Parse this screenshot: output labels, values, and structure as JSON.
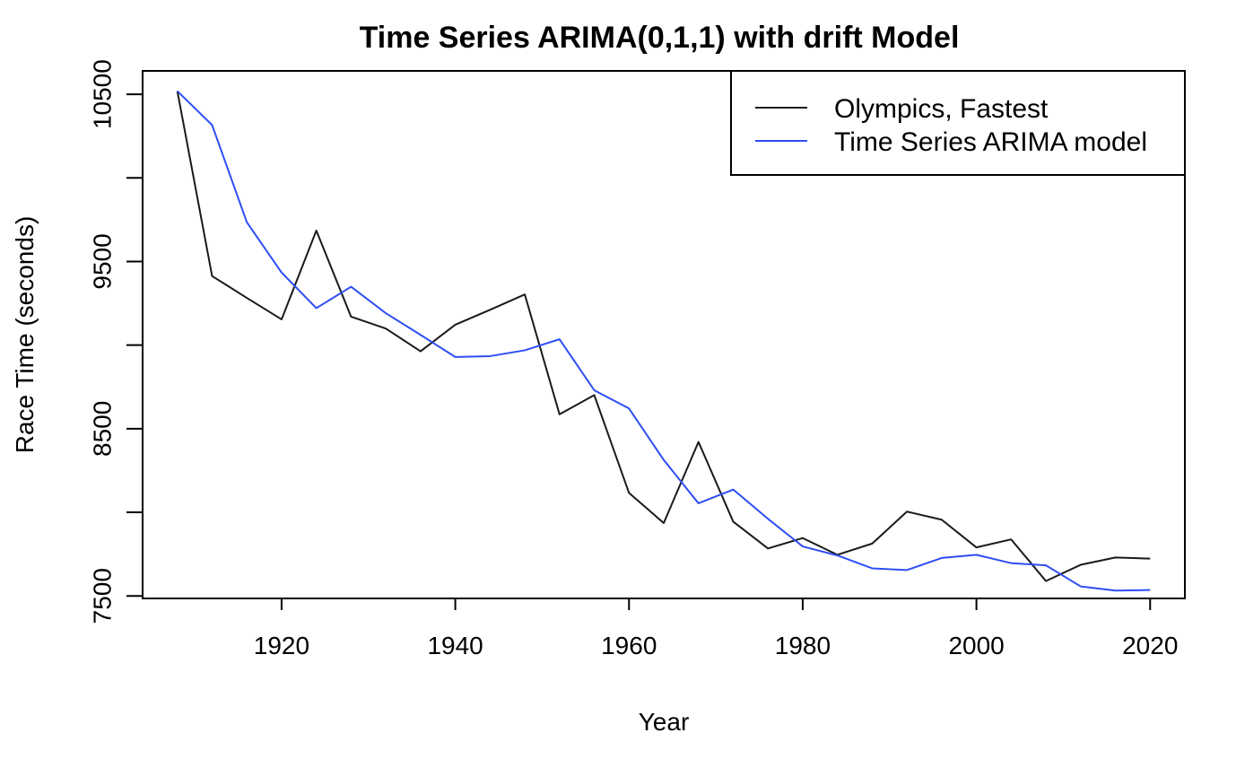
{
  "chart_data": {
    "type": "line",
    "title": "Time Series ARIMA(0,1,1) with drift Model",
    "xlabel": "Year",
    "ylabel": "Race Time (seconds)",
    "xlim": [
      1904,
      2024
    ],
    "ylim": [
      7485,
      10640
    ],
    "x_ticks": [
      1920,
      1940,
      1960,
      1980,
      2000,
      2020
    ],
    "y_ticks": [
      7500,
      8000,
      8500,
      9000,
      9500,
      10000,
      10500
    ],
    "y_tick_labels": [
      "7500",
      "",
      "8500",
      "",
      "9500",
      "",
      "10500"
    ],
    "legend_position": "top-right",
    "grid": false,
    "x": [
      1908,
      1912,
      1916,
      1920,
      1924,
      1928,
      1932,
      1936,
      1940,
      1944,
      1948,
      1952,
      1956,
      1960,
      1964,
      1968,
      1972,
      1976,
      1980,
      1984,
      1988,
      1992,
      1996,
      2000,
      2004,
      2008,
      2012,
      2016,
      2020
    ],
    "series": [
      {
        "name": "Olympics, Fastest",
        "color": "#1a1a1a",
        "values": [
          10519,
          9413,
          9282,
          9154,
          9685,
          9170,
          9099,
          8963,
          9122,
          9211,
          9303,
          8586,
          8701,
          8116,
          7936,
          8421,
          7944,
          7784,
          7846,
          7746,
          7813,
          8004,
          7956,
          7790,
          7838,
          7589,
          7686,
          7730,
          7723
        ]
      },
      {
        "name": "Time Series ARIMA model",
        "color": "#2d4ef5",
        "values": [
          10519,
          10316,
          9735,
          9434,
          9221,
          9349,
          9191,
          9061,
          8929,
          8934,
          8969,
          9035,
          8730,
          8621,
          8313,
          8054,
          8136,
          7961,
          7796,
          7742,
          7665,
          7655,
          7727,
          7746,
          7696,
          7683,
          7557,
          7532,
          7535
        ]
      }
    ]
  }
}
